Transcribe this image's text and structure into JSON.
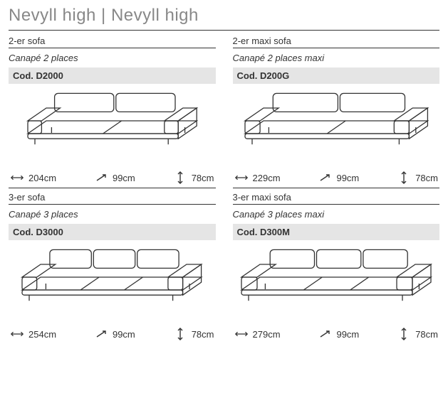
{
  "title": "Nevyll high | Nevyll high",
  "icon_color": "#333333",
  "products": [
    {
      "name_de": "2-er sofa",
      "name_fr": "Canapé 2 places",
      "code": "Cod. D2000",
      "width": "204cm",
      "depth": "99cm",
      "height": "78cm",
      "seats": 2,
      "sofa_scale": 0.88
    },
    {
      "name_de": "2-er maxi sofa",
      "name_fr": "Canapé 2 places maxi",
      "code": "Cod. D200G",
      "width": "229cm",
      "depth": "99cm",
      "height": "78cm",
      "seats": 2,
      "sofa_scale": 0.96
    },
    {
      "name_de": "3-er sofa",
      "name_fr": "Canapé 3 places",
      "code": "Cod. D3000",
      "width": "254cm",
      "depth": "99cm",
      "height": "78cm",
      "seats": 3,
      "sofa_scale": 0.94
    },
    {
      "name_de": "3-er maxi sofa",
      "name_fr": "Canapé 3 places maxi",
      "code": "Cod. D300M",
      "width": "279cm",
      "depth": "99cm",
      "height": "78cm",
      "seats": 3,
      "sofa_scale": 1.0
    }
  ]
}
